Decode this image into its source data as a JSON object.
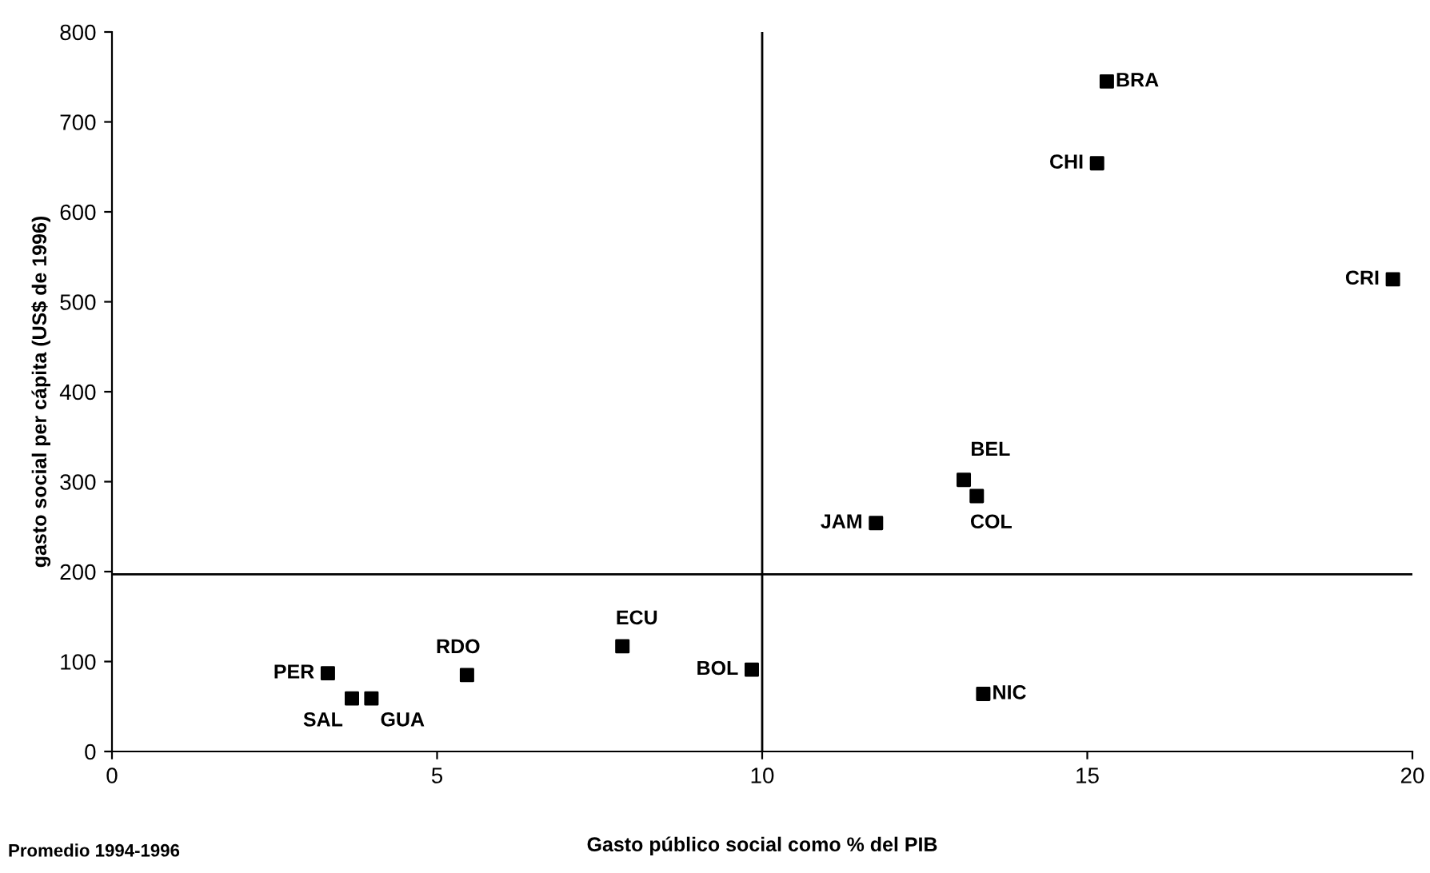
{
  "chart_data": {
    "type": "scatter",
    "xlabel": "Gasto público social como % del PIB",
    "ylabel": "gasto social per cápita (US$ de 1996)",
    "x": [
      15.3,
      15.15,
      19.7,
      13.1,
      13.3,
      11.75,
      13.4,
      9.84,
      7.85,
      5.46,
      3.32,
      3.69,
      3.99
    ],
    "series": [
      {
        "color": "#000000",
        "values": [
          745,
          654,
          525,
          302,
          284,
          254,
          64,
          91,
          117,
          85,
          87,
          59,
          59
        ]
      }
    ],
    "marker": "square",
    "xlim": [
      0,
      20
    ],
    "xticks": [
      0,
      5,
      10,
      15,
      20
    ],
    "ylim": [
      0,
      800
    ],
    "yticks": [
      0,
      100,
      200,
      300,
      400,
      500,
      600,
      700,
      800
    ],
    "grid": false,
    "ref_lines": [
      {
        "axis": "x",
        "value": 10,
        "color": "#000000"
      },
      {
        "axis": "y",
        "value": 197,
        "color": "#000000"
      }
    ],
    "annotations": [
      {
        "text": "BRA",
        "x": 15.3,
        "y": 745
      },
      {
        "text": "CHI",
        "x": 15.15,
        "y": 654
      },
      {
        "text": "CRI",
        "x": 19.7,
        "y": 525
      },
      {
        "text": "BEL",
        "x": 13.1,
        "y": 302
      },
      {
        "text": "COL",
        "x": 13.3,
        "y": 284
      },
      {
        "text": "JAM",
        "x": 11.75,
        "y": 254
      },
      {
        "text": "NIC",
        "x": 13.4,
        "y": 64
      },
      {
        "text": "BOL",
        "x": 9.84,
        "y": 91
      },
      {
        "text": "ECU",
        "x": 7.85,
        "y": 117
      },
      {
        "text": "RDO",
        "x": 5.46,
        "y": 85
      },
      {
        "text": "PER",
        "x": 3.32,
        "y": 87
      },
      {
        "text": "SAL",
        "x": 3.69,
        "y": 59
      },
      {
        "text": "GUA",
        "x": 3.99,
        "y": 59
      },
      "Promedio 1994-1996"
    ]
  }
}
